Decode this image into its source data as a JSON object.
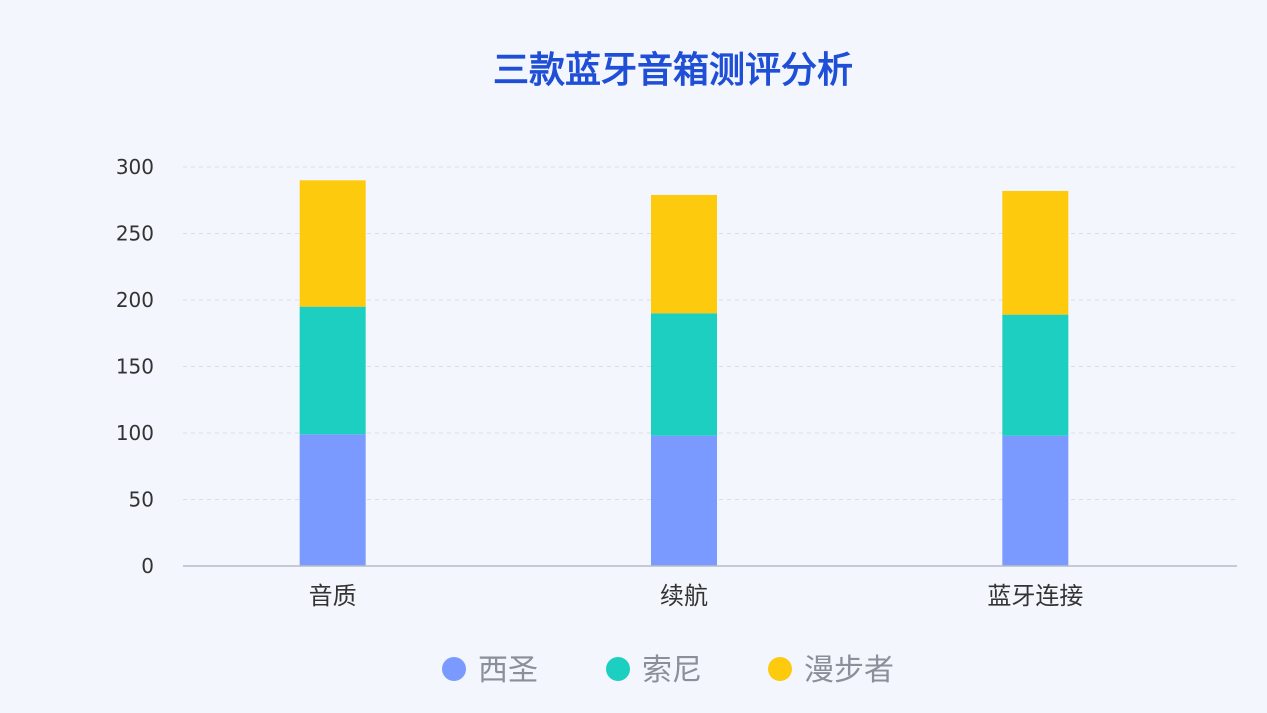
{
  "chart_data": {
    "type": "bar",
    "stacked": true,
    "title": "三款蓝牙音箱测评分析",
    "xlabel": "",
    "ylabel": "",
    "categories": [
      "音质",
      "续航",
      "蓝牙连接"
    ],
    "series": [
      {
        "name": "西圣",
        "color": "#7b9aff",
        "values": [
          99,
          98,
          98
        ]
      },
      {
        "name": "索尼",
        "color": "#1ccfc0",
        "values": [
          96,
          92,
          91
        ]
      },
      {
        "name": "漫步者",
        "color": "#fdca0e",
        "values": [
          95,
          89,
          93
        ]
      }
    ],
    "ylim": [
      0,
      300
    ],
    "yticks": [
      0,
      50,
      100,
      150,
      200,
      250,
      300
    ],
    "grid": true,
    "legend_position": "bottom-center"
  },
  "colors": {
    "background": "#f3f7fd",
    "title": "#1f4fd6",
    "axis": "#b8bcc6",
    "grid": "#d9dee8"
  }
}
